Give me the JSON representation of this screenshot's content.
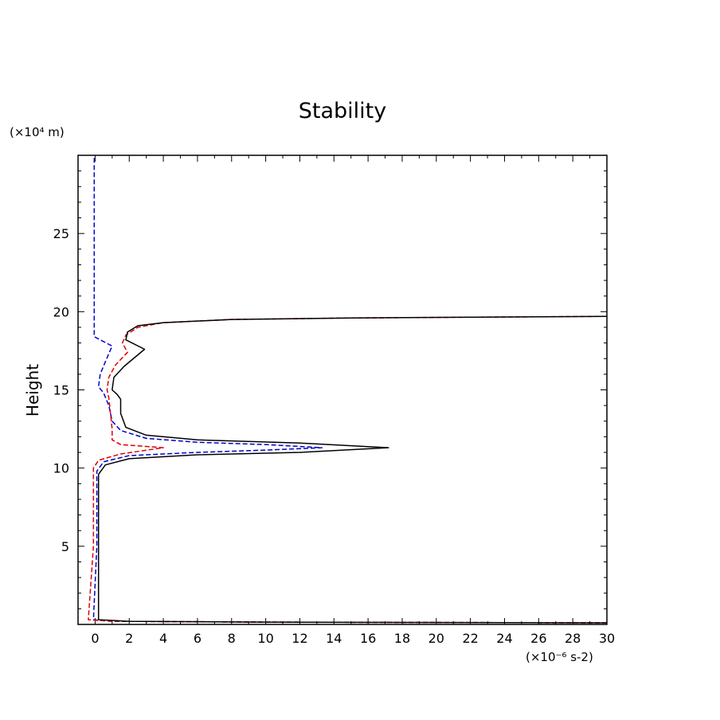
{
  "chart_data": {
    "type": "line",
    "title": "Stability",
    "ylabel": "Height",
    "xlabel": "",
    "y_unit": "(×10⁴ m)",
    "x_unit": "(×10⁻⁶ s-2)",
    "xlim": [
      -1,
      30
    ],
    "ylim": [
      0,
      30
    ],
    "x_ticks": [
      0,
      2,
      4,
      6,
      8,
      10,
      12,
      14,
      16,
      18,
      20,
      22,
      24,
      26,
      28,
      30
    ],
    "y_ticks": [
      5,
      10,
      15,
      20,
      25
    ],
    "grid": false,
    "legend": "none",
    "series": [
      {
        "color": "#000000",
        "style": "solid",
        "points": [
          [
            30,
            0.1
          ],
          [
            10,
            0.15
          ],
          [
            2,
            0.2
          ],
          [
            0.2,
            0.3
          ],
          [
            0.2,
            5
          ],
          [
            0.2,
            9.6
          ],
          [
            0.6,
            10.2
          ],
          [
            2,
            10.6
          ],
          [
            6,
            10.85
          ],
          [
            12,
            11.0
          ],
          [
            17.2,
            11.3
          ],
          [
            12,
            11.6
          ],
          [
            6,
            11.8
          ],
          [
            3,
            12.1
          ],
          [
            1.8,
            12.6
          ],
          [
            1.5,
            13.5
          ],
          [
            1.5,
            14.4
          ],
          [
            1.3,
            14.7
          ],
          [
            1.0,
            15.0
          ],
          [
            1.1,
            15.8
          ],
          [
            1.7,
            16.5
          ],
          [
            2.9,
            17.6
          ],
          [
            1.8,
            18.2
          ],
          [
            1.9,
            18.7
          ],
          [
            2.5,
            19.1
          ],
          [
            4,
            19.3
          ],
          [
            8,
            19.5
          ],
          [
            15,
            19.6
          ],
          [
            30,
            19.7
          ]
        ]
      },
      {
        "color": "#0000cc",
        "style": "dashed",
        "points": [
          [
            30,
            0.1
          ],
          [
            10,
            0.15
          ],
          [
            1,
            0.2
          ],
          [
            -0.1,
            0.3
          ],
          [
            0.1,
            5
          ],
          [
            0.1,
            9.8
          ],
          [
            0.5,
            10.4
          ],
          [
            2,
            10.8
          ],
          [
            6,
            11.0
          ],
          [
            10,
            11.15
          ],
          [
            13.3,
            11.3
          ],
          [
            10,
            11.5
          ],
          [
            6,
            11.65
          ],
          [
            3,
            11.9
          ],
          [
            1.5,
            12.4
          ],
          [
            1,
            13.0
          ],
          [
            0.8,
            14.0
          ],
          [
            0.5,
            14.8
          ],
          [
            0.2,
            15.2
          ],
          [
            0.3,
            16.0
          ],
          [
            0.6,
            16.8
          ],
          [
            1.0,
            17.8
          ],
          [
            -0.05,
            18.4
          ],
          [
            -0.05,
            22
          ],
          [
            -0.05,
            30
          ]
        ]
      },
      {
        "color": "#dd0000",
        "style": "dashed",
        "points": [
          [
            30,
            0.1
          ],
          [
            10,
            0.15
          ],
          [
            1,
            0.2
          ],
          [
            -0.4,
            0.3
          ],
          [
            -0.1,
            5
          ],
          [
            -0.1,
            10.0
          ],
          [
            0.2,
            10.5
          ],
          [
            1.5,
            10.9
          ],
          [
            4,
            11.3
          ],
          [
            1.5,
            11.5
          ],
          [
            1,
            11.8
          ],
          [
            1,
            12.5
          ],
          [
            0.9,
            13.5
          ],
          [
            0.8,
            14.5
          ],
          [
            0.7,
            15.0
          ],
          [
            0.8,
            15.8
          ],
          [
            1.2,
            16.6
          ],
          [
            1.9,
            17.4
          ],
          [
            1.6,
            18.0
          ],
          [
            1.8,
            18.5
          ],
          [
            2.5,
            19.0
          ],
          [
            4,
            19.3
          ],
          [
            8,
            19.5
          ],
          [
            15,
            19.6
          ],
          [
            30,
            19.7
          ]
        ]
      }
    ]
  }
}
